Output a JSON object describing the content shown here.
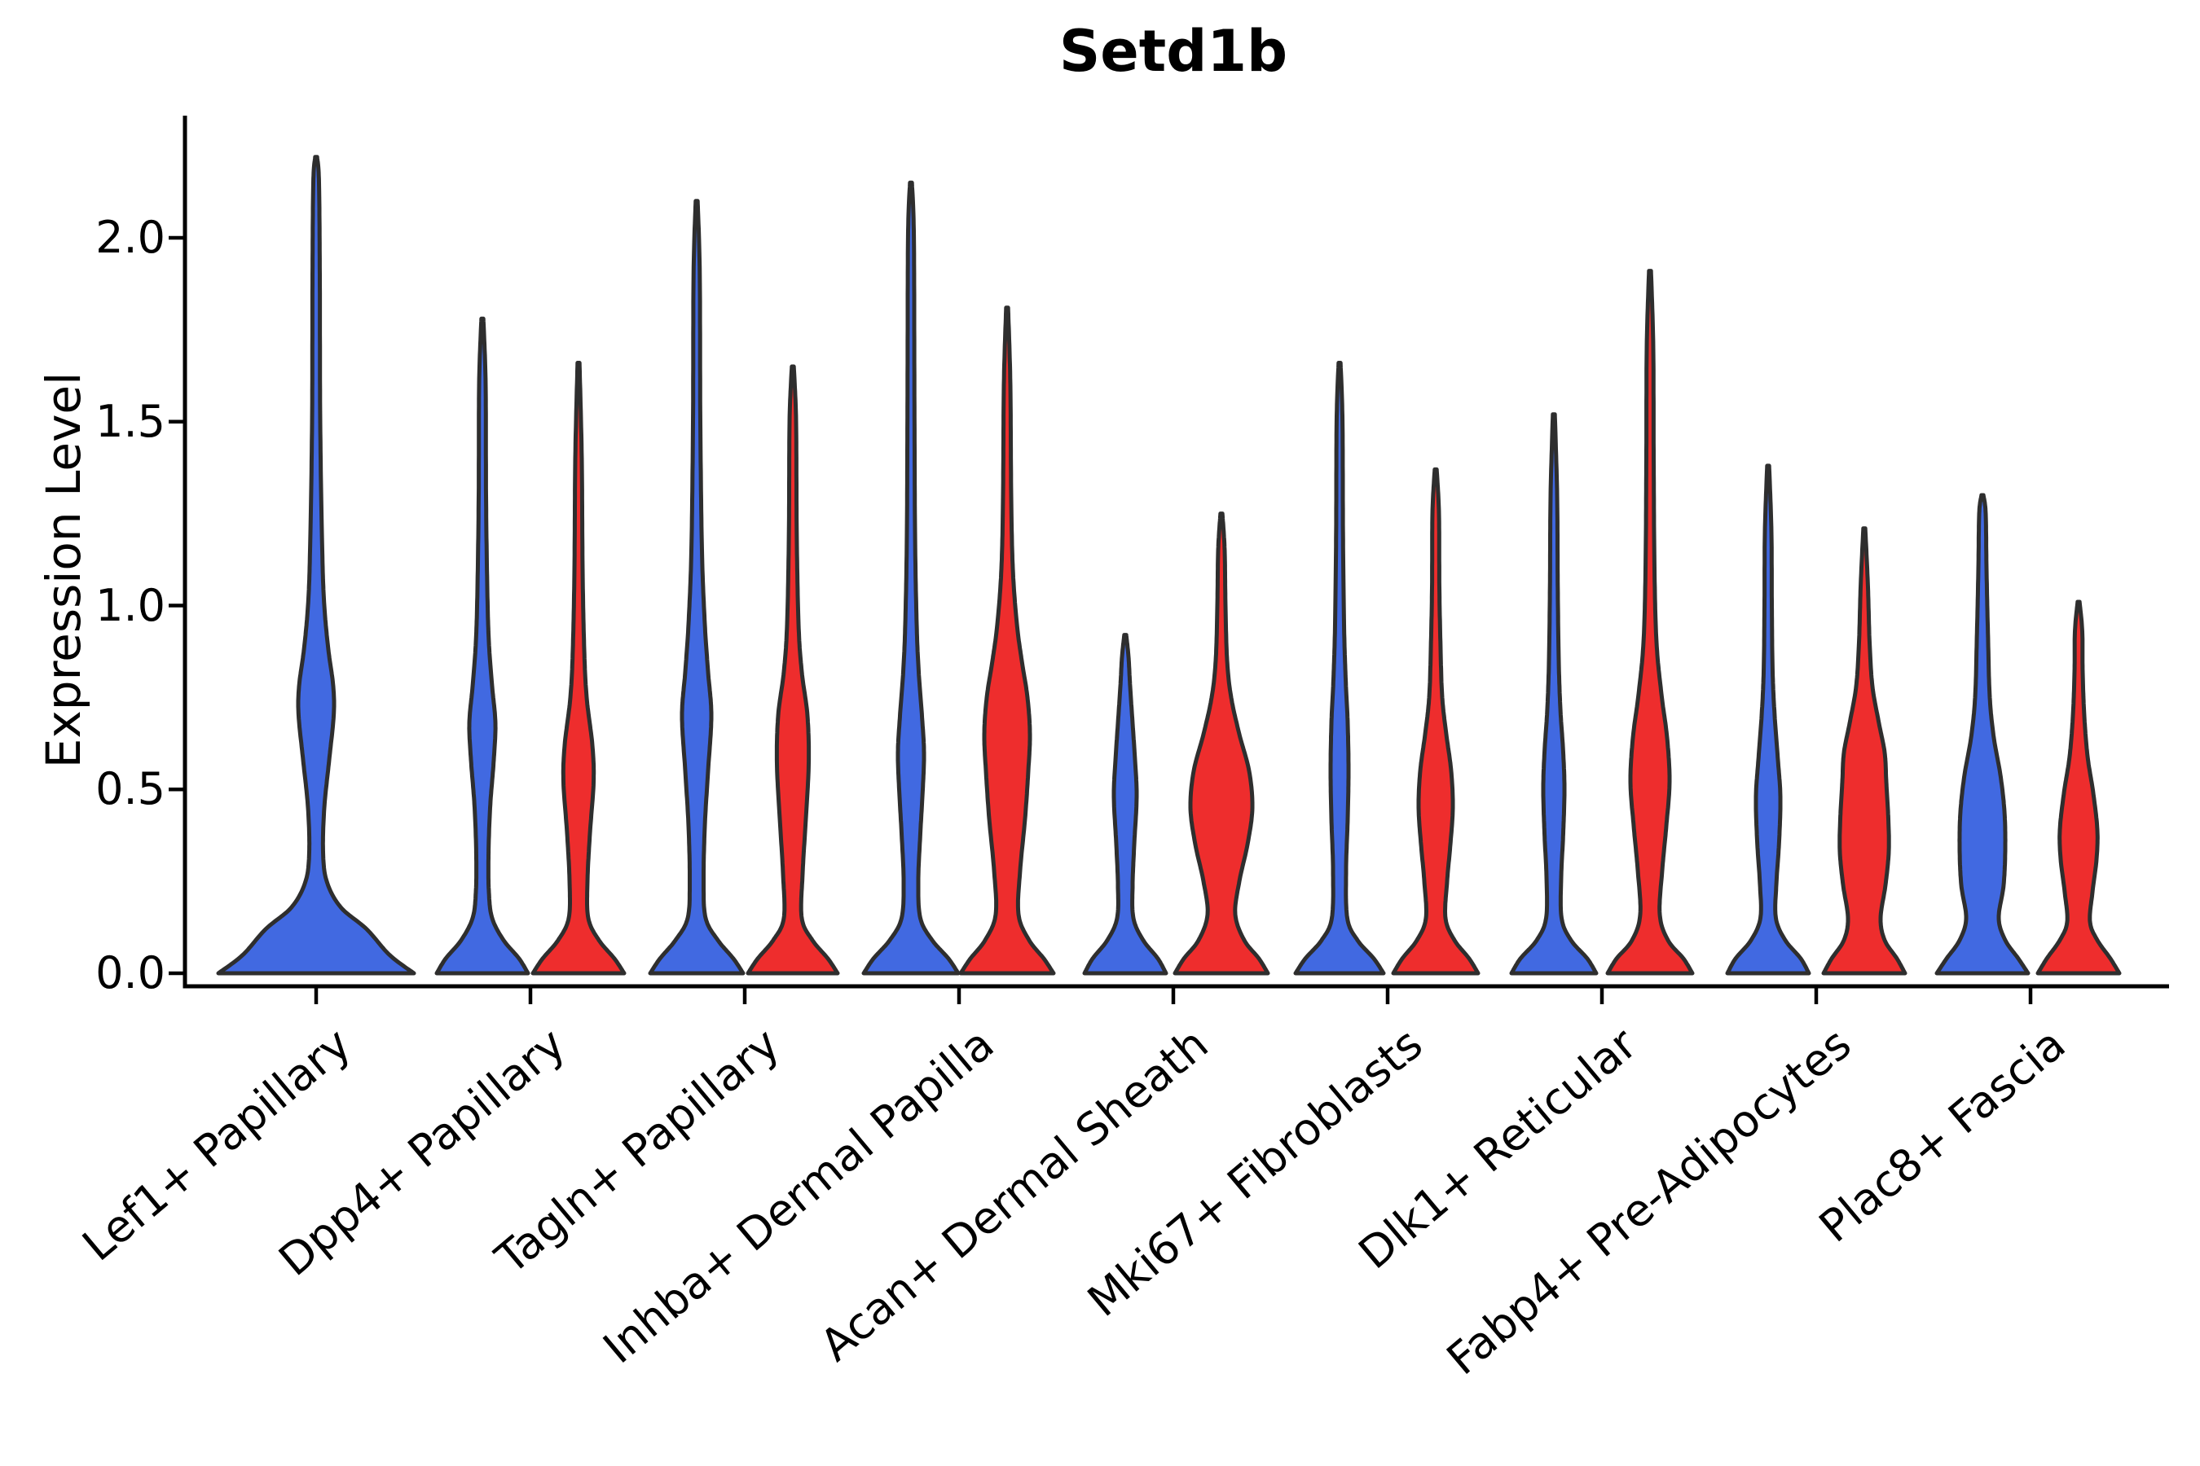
{
  "title": "Setd1b",
  "axes": {
    "ylabel": "Expression Level",
    "yticks": [
      {
        "label": "0.0",
        "value": 0.0
      },
      {
        "label": "0.5",
        "value": 0.5
      },
      {
        "label": "1.0",
        "value": 1.0
      },
      {
        "label": "1.5",
        "value": 1.5
      },
      {
        "label": "2.0",
        "value": 2.0
      }
    ]
  },
  "colors": {
    "blue": "#4169E1",
    "red": "#EE2D2D",
    "outline": "#2E2E2E",
    "axis": "#000000"
  },
  "chart_data": {
    "type": "violin",
    "title": "Setd1b",
    "xlabel": "",
    "ylabel": "Expression Level",
    "ylim": [
      -0.05,
      2.33
    ],
    "grid": false,
    "legend": "none",
    "categories": [
      "Lef1+ Papillary",
      "Dpp4+ Papillary",
      "Tagln+ Papillary",
      "Inhba+ Dermal Papilla",
      "Acan+ Dermal Sheath",
      "Mki67+ Fibroblasts",
      "Dlk1+ Reticular",
      "Fabp4+ Pre-Adipocytes",
      "Plac8+ Fascia"
    ],
    "profile_units": "pairs of [expression_value, half_width_px]",
    "series": [
      {
        "category_index": 0,
        "category": "Lef1+ Papillary",
        "split": "single",
        "color": "blue",
        "max": 2.22,
        "profile": [
          [
            0,
            120
          ],
          [
            0.05,
            90
          ],
          [
            0.12,
            62
          ],
          [
            0.18,
            30
          ],
          [
            0.25,
            13
          ],
          [
            0.33,
            8.5
          ],
          [
            0.45,
            10
          ],
          [
            0.58,
            16
          ],
          [
            0.7,
            21.5
          ],
          [
            0.78,
            21
          ],
          [
            0.88,
            15
          ],
          [
            1.0,
            10
          ],
          [
            1.15,
            7.5
          ],
          [
            1.5,
            5
          ],
          [
            1.9,
            4.5
          ],
          [
            2.15,
            3.5
          ],
          [
            2.22,
            1.2
          ]
        ]
      },
      {
        "category_index": 1,
        "category": "Dpp4+ Papillary",
        "split": "left",
        "color": "blue",
        "max": 1.78,
        "profile": [
          [
            0,
            56
          ],
          [
            0.04,
            45
          ],
          [
            0.09,
            26
          ],
          [
            0.15,
            12
          ],
          [
            0.22,
            8
          ],
          [
            0.32,
            7.5
          ],
          [
            0.45,
            9.5
          ],
          [
            0.58,
            14
          ],
          [
            0.68,
            16
          ],
          [
            0.78,
            12
          ],
          [
            0.9,
            8
          ],
          [
            1.05,
            6
          ],
          [
            1.3,
            4.5
          ],
          [
            1.6,
            4
          ],
          [
            1.78,
            1.2
          ]
        ]
      },
      {
        "category_index": 1,
        "category": "Dpp4+ Papillary",
        "split": "right",
        "color": "red",
        "max": 1.66,
        "profile": [
          [
            0,
            56
          ],
          [
            0.04,
            44
          ],
          [
            0.09,
            25
          ],
          [
            0.15,
            12
          ],
          [
            0.25,
            11
          ],
          [
            0.38,
            14
          ],
          [
            0.52,
            18.5
          ],
          [
            0.62,
            17
          ],
          [
            0.75,
            10
          ],
          [
            0.88,
            7
          ],
          [
            1.1,
            5
          ],
          [
            1.4,
            4
          ],
          [
            1.66,
            1.2
          ]
        ]
      },
      {
        "category_index": 2,
        "category": "Tagln+ Papillary",
        "split": "left",
        "color": "blue",
        "max": 2.1,
        "profile": [
          [
            0,
            57
          ],
          [
            0.04,
            45
          ],
          [
            0.09,
            26
          ],
          [
            0.15,
            11
          ],
          [
            0.25,
            8.5
          ],
          [
            0.4,
            10
          ],
          [
            0.55,
            14
          ],
          [
            0.7,
            18
          ],
          [
            0.82,
            14
          ],
          [
            0.95,
            10
          ],
          [
            1.15,
            6.5
          ],
          [
            1.5,
            4.5
          ],
          [
            1.9,
            3.8
          ],
          [
            2.1,
            1.2
          ]
        ]
      },
      {
        "category_index": 2,
        "category": "Tagln+ Papillary",
        "split": "right",
        "color": "red",
        "max": 1.65,
        "profile": [
          [
            0,
            55
          ],
          [
            0.04,
            43
          ],
          [
            0.09,
            24
          ],
          [
            0.15,
            11
          ],
          [
            0.27,
            12
          ],
          [
            0.42,
            16
          ],
          [
            0.57,
            19.5
          ],
          [
            0.7,
            18
          ],
          [
            0.82,
            11
          ],
          [
            0.95,
            7
          ],
          [
            1.2,
            4.8
          ],
          [
            1.5,
            4
          ],
          [
            1.65,
            1.2
          ]
        ]
      },
      {
        "category_index": 3,
        "category": "Inhba+ Dermal Papilla",
        "split": "left",
        "color": "blue",
        "max": 2.15,
        "profile": [
          [
            0,
            58
          ],
          [
            0.04,
            46
          ],
          [
            0.09,
            26
          ],
          [
            0.15,
            11.5
          ],
          [
            0.25,
            9
          ],
          [
            0.38,
            11.5
          ],
          [
            0.5,
            14.5
          ],
          [
            0.6,
            16
          ],
          [
            0.7,
            13.5
          ],
          [
            0.82,
            9.5
          ],
          [
            0.95,
            7
          ],
          [
            1.2,
            5
          ],
          [
            1.6,
            4.2
          ],
          [
            2.0,
            3.6
          ],
          [
            2.15,
            1.2
          ]
        ]
      },
      {
        "category_index": 3,
        "category": "Inhba+ Dermal Papilla",
        "split": "right",
        "color": "red",
        "max": 1.81,
        "profile": [
          [
            0,
            57
          ],
          [
            0.04,
            45
          ],
          [
            0.09,
            27
          ],
          [
            0.16,
            14
          ],
          [
            0.28,
            16
          ],
          [
            0.42,
            22
          ],
          [
            0.55,
            26
          ],
          [
            0.65,
            28
          ],
          [
            0.75,
            25
          ],
          [
            0.85,
            18
          ],
          [
            0.95,
            12
          ],
          [
            1.1,
            7
          ],
          [
            1.3,
            5
          ],
          [
            1.6,
            4
          ],
          [
            1.81,
            1.2
          ]
        ]
      },
      {
        "category_index": 4,
        "category": "Acan+ Dermal Sheath",
        "split": "left",
        "color": "blue",
        "max": 0.92,
        "profile": [
          [
            0,
            50
          ],
          [
            0.04,
            40
          ],
          [
            0.09,
            22
          ],
          [
            0.15,
            10
          ],
          [
            0.24,
            9
          ],
          [
            0.35,
            11
          ],
          [
            0.48,
            14
          ],
          [
            0.58,
            12
          ],
          [
            0.68,
            9
          ],
          [
            0.78,
            6
          ],
          [
            0.86,
            4
          ],
          [
            0.92,
            1.2
          ]
        ]
      },
      {
        "category_index": 4,
        "category": "Acan+ Dermal Sheath",
        "split": "right",
        "color": "red",
        "max": 1.25,
        "profile": [
          [
            0,
            57
          ],
          [
            0.04,
            46
          ],
          [
            0.09,
            28
          ],
          [
            0.16,
            17
          ],
          [
            0.25,
            22
          ],
          [
            0.35,
            32
          ],
          [
            0.45,
            38
          ],
          [
            0.55,
            34
          ],
          [
            0.65,
            22
          ],
          [
            0.75,
            12
          ],
          [
            0.85,
            7
          ],
          [
            1.0,
            5
          ],
          [
            1.15,
            4
          ],
          [
            1.25,
            1.2
          ]
        ]
      },
      {
        "category_index": 5,
        "category": "Mki67+ Fibroblasts",
        "split": "left",
        "color": "blue",
        "max": 1.66,
        "profile": [
          [
            0,
            54
          ],
          [
            0.04,
            42
          ],
          [
            0.09,
            22
          ],
          [
            0.15,
            9.5
          ],
          [
            0.28,
            8
          ],
          [
            0.42,
            10
          ],
          [
            0.55,
            11
          ],
          [
            0.68,
            10
          ],
          [
            0.8,
            7.5
          ],
          [
            0.95,
            5.5
          ],
          [
            1.2,
            4.2
          ],
          [
            1.5,
            3.6
          ],
          [
            1.66,
            1.2
          ]
        ]
      },
      {
        "category_index": 5,
        "category": "Mki67+ Fibroblasts",
        "split": "right",
        "color": "red",
        "max": 1.37,
        "profile": [
          [
            0,
            52
          ],
          [
            0.04,
            41
          ],
          [
            0.09,
            23
          ],
          [
            0.15,
            12
          ],
          [
            0.25,
            14
          ],
          [
            0.35,
            18
          ],
          [
            0.45,
            21
          ],
          [
            0.55,
            19
          ],
          [
            0.65,
            13
          ],
          [
            0.75,
            8
          ],
          [
            0.88,
            6
          ],
          [
            1.05,
            4.5
          ],
          [
            1.25,
            4
          ],
          [
            1.37,
            1.2
          ]
        ]
      },
      {
        "category_index": 6,
        "category": "Dlk1+ Reticular",
        "split": "left",
        "color": "blue",
        "max": 1.52,
        "profile": [
          [
            0,
            52
          ],
          [
            0.04,
            41
          ],
          [
            0.09,
            21
          ],
          [
            0.15,
            9.5
          ],
          [
            0.26,
            9
          ],
          [
            0.38,
            11.5
          ],
          [
            0.5,
            13
          ],
          [
            0.6,
            11.5
          ],
          [
            0.72,
            8
          ],
          [
            0.85,
            6
          ],
          [
            1.05,
            4.8
          ],
          [
            1.3,
            4
          ],
          [
            1.52,
            1.2
          ]
        ]
      },
      {
        "category_index": 6,
        "category": "Dlk1+ Reticular",
        "split": "right",
        "color": "red",
        "max": 1.91,
        "profile": [
          [
            0,
            52
          ],
          [
            0.04,
            41
          ],
          [
            0.09,
            22
          ],
          [
            0.16,
            12
          ],
          [
            0.28,
            15
          ],
          [
            0.4,
            20
          ],
          [
            0.52,
            24
          ],
          [
            0.64,
            21
          ],
          [
            0.76,
            14
          ],
          [
            0.9,
            8
          ],
          [
            1.1,
            5.5
          ],
          [
            1.4,
            4.5
          ],
          [
            1.7,
            4
          ],
          [
            1.91,
            1.2
          ]
        ]
      },
      {
        "category_index": 7,
        "category": "Fabp4+ Pre-Adipocytes",
        "split": "left",
        "color": "blue",
        "max": 1.38,
        "profile": [
          [
            0,
            50
          ],
          [
            0.04,
            40
          ],
          [
            0.09,
            21
          ],
          [
            0.15,
            9.5
          ],
          [
            0.24,
            10
          ],
          [
            0.36,
            13.5
          ],
          [
            0.48,
            15
          ],
          [
            0.58,
            12
          ],
          [
            0.7,
            8
          ],
          [
            0.82,
            5.5
          ],
          [
            1.0,
            4.5
          ],
          [
            1.2,
            4
          ],
          [
            1.38,
            1.2
          ]
        ]
      },
      {
        "category_index": 7,
        "category": "Fabp4+ Pre-Adipocytes",
        "split": "right",
        "color": "red",
        "max": 1.21,
        "profile": [
          [
            0,
            50
          ],
          [
            0.04,
            40
          ],
          [
            0.09,
            25
          ],
          [
            0.15,
            20
          ],
          [
            0.24,
            26
          ],
          [
            0.33,
            30
          ],
          [
            0.42,
            29.5
          ],
          [
            0.52,
            27
          ],
          [
            0.6,
            25
          ],
          [
            0.68,
            18
          ],
          [
            0.78,
            10
          ],
          [
            0.9,
            6.5
          ],
          [
            1.05,
            4.5
          ],
          [
            1.21,
            1.2
          ]
        ]
      },
      {
        "category_index": 8,
        "category": "Plac8+ Fascia",
        "split": "left",
        "color": "blue",
        "max": 1.3,
        "profile": [
          [
            0,
            56
          ],
          [
            0.04,
            44
          ],
          [
            0.09,
            28
          ],
          [
            0.15,
            20
          ],
          [
            0.24,
            26
          ],
          [
            0.34,
            28
          ],
          [
            0.44,
            27
          ],
          [
            0.54,
            22
          ],
          [
            0.64,
            14
          ],
          [
            0.75,
            9
          ],
          [
            0.9,
            7
          ],
          [
            1.1,
            5
          ],
          [
            1.25,
            4
          ],
          [
            1.3,
            1.2
          ]
        ]
      },
      {
        "category_index": 8,
        "category": "Plac8+ Fascia",
        "split": "right",
        "color": "red",
        "max": 1.01,
        "profile": [
          [
            0,
            50
          ],
          [
            0.04,
            39
          ],
          [
            0.09,
            23
          ],
          [
            0.14,
            14
          ],
          [
            0.22,
            17
          ],
          [
            0.31,
            22
          ],
          [
            0.39,
            23
          ],
          [
            0.49,
            18
          ],
          [
            0.59,
            11
          ],
          [
            0.7,
            7
          ],
          [
            0.82,
            5
          ],
          [
            0.93,
            4.5
          ],
          [
            1.01,
            1.2
          ]
        ]
      }
    ]
  }
}
